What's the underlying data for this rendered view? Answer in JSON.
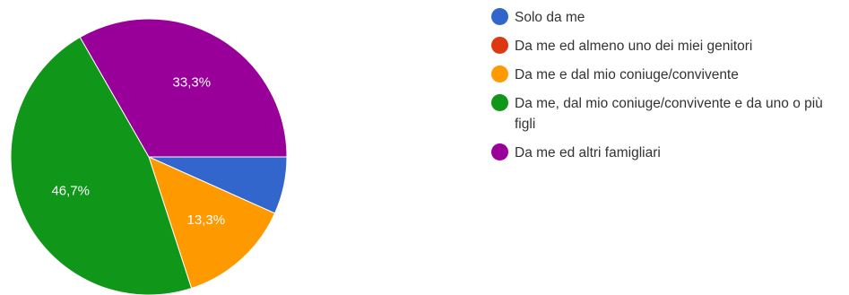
{
  "chart_data": {
    "type": "pie",
    "categories": [
      "Solo da me",
      "Da me ed almeno uno dei miei genitori",
      "Da me e dal mio coniuge/convivente",
      "Da me, dal mio coniuge/convivente e da uno o più figli",
      "Da me ed altri famigliari"
    ],
    "values": [
      6.7,
      0,
      13.3,
      46.7,
      33.3
    ],
    "data_labels": [
      "",
      "",
      "13,3%",
      "46,7%",
      "33,3%"
    ],
    "colors": [
      "#3366cc",
      "#dc3912",
      "#ff9900",
      "#109618",
      "#990099"
    ],
    "legend_position": "right"
  }
}
